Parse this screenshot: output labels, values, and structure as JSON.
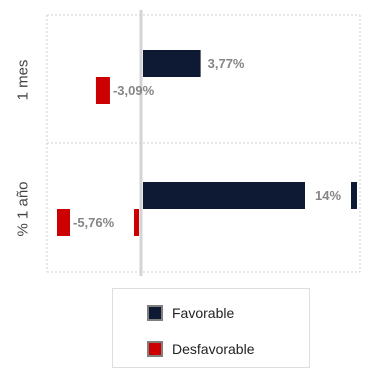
{
  "chart_data": {
    "type": "bar",
    "orientation": "horizontal",
    "categories": [
      "1 mes",
      "% 1 año"
    ],
    "series": [
      {
        "name": "Favorable",
        "color": "#0e1a33",
        "values": [
          3.77,
          14
        ],
        "labels": [
          "3,77%",
          "14%"
        ]
      },
      {
        "name": "Desfavorable",
        "color": "#cc0000",
        "values": [
          -3.09,
          -5.76
        ],
        "labels": [
          "-3,09%",
          "-5,76%"
        ]
      }
    ],
    "legend_position": "bottom",
    "grid": false
  }
}
